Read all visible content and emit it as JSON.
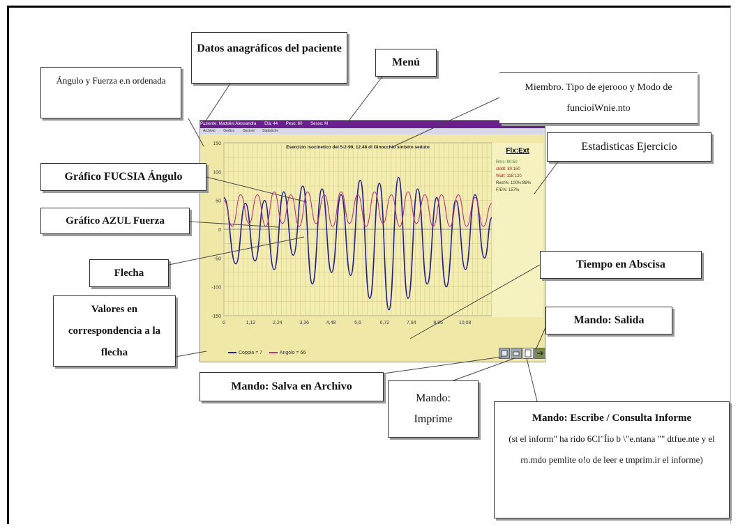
{
  "app": {
    "titlebar": {
      "patient_label": "Paziente: Mattolini Alessandra",
      "age": "Età: 44",
      "weight": "Peso: 60",
      "sex": "Sesso: M"
    },
    "menu_items": [
      "Archivio",
      "Grafico",
      "Opzioni",
      "Statistiche"
    ],
    "stats": {
      "header": "Flx:Ext",
      "rows": [
        {
          "label": "Rms:",
          "value": "90:50",
          "color": "#2e8b2e"
        },
        {
          "label": "stddt:",
          "value": "80:160",
          "color": "#b22222"
        },
        {
          "label": "Watt:",
          "value": "118:120",
          "color": "#b22222"
        },
        {
          "label": "Rest%:",
          "value": "100%:88%",
          "color": "#333333"
        },
        {
          "label": "F/E%:",
          "value": "157%",
          "color": "#333333"
        }
      ]
    },
    "legend": {
      "force": "Coppia = 7",
      "angle": "Angolo = 66",
      "force_color": "#1f1f9c",
      "angle_color": "#c0308a"
    },
    "buttons": [
      {
        "icon": "save-icon"
      },
      {
        "icon": "print-icon"
      },
      {
        "icon": "report-icon"
      },
      {
        "icon": "exit-icon"
      }
    ]
  },
  "chart_data": {
    "type": "line",
    "title": "Esercizio isocinetico del 5-2-99, 12.48 di Ginocchio sinistro seduto",
    "xlabel": "",
    "ylabel": "",
    "ylim": [
      -150,
      150
    ],
    "xlim": [
      0,
      11.2
    ],
    "y_ticks": [
      "150",
      "100",
      "50",
      "0",
      "-50",
      "-100",
      "-150"
    ],
    "x_ticks": [
      "0",
      "1,12",
      "2,24",
      "3,36",
      "4,48",
      "5,6",
      "6,72",
      "7,84",
      "8,96",
      "10,08"
    ],
    "grid": true,
    "series": [
      {
        "color": "#1f1f9c",
        "x": [
          0,
          0.5,
          0.9,
          1.3,
          1.7,
          2.1,
          2.5,
          2.9,
          3.3,
          3.7,
          4.1,
          4.5,
          4.9,
          5.3,
          5.7,
          6.1,
          6.5,
          6.9,
          7.3,
          7.7,
          8.1,
          8.5,
          8.9,
          9.3,
          9.7,
          10.1,
          10.5,
          10.9,
          11.2
        ],
        "y": [
          55,
          -60,
          45,
          -55,
          50,
          -70,
          65,
          -45,
          75,
          -95,
          70,
          -75,
          60,
          -80,
          85,
          -120,
          80,
          -140,
          90,
          -120,
          70,
          -95,
          55,
          -100,
          50,
          -70,
          60,
          -50,
          20
        ]
      },
      {
        "color": "#c0308a",
        "x": [
          0,
          0.35,
          0.7,
          1.05,
          1.4,
          1.75,
          2.1,
          2.45,
          2.8,
          3.15,
          3.5,
          3.85,
          4.2,
          4.55,
          4.9,
          5.25,
          5.6,
          5.95,
          6.3,
          6.65,
          7.0,
          7.35,
          7.7,
          8.05,
          8.4,
          8.75,
          9.1,
          9.45,
          9.8,
          10.15,
          10.5,
          10.85,
          11.2
        ],
        "y": [
          50,
          5,
          60,
          10,
          60,
          5,
          65,
          10,
          60,
          5,
          65,
          10,
          60,
          5,
          65,
          10,
          60,
          5,
          65,
          10,
          60,
          5,
          65,
          10,
          60,
          5,
          60,
          5,
          60,
          5,
          55,
          5,
          45
        ]
      }
    ]
  },
  "callouts": {
    "datos": "Datos anagráficos del paciente",
    "angulo_fuerza": "Ángulo y Fuerza e.n ordenada",
    "menu": "Menú",
    "miembro": "Miembro. Tipo de ejerooo y Modo de funcioiWnie.nto",
    "estadisticas": "Estadisticas Ejercicio",
    "fucsia": "Gráfico FUCSIA Ángulo",
    "azul": "Gráfico AZUL Fuerza",
    "flecha": "Flecha",
    "tiempo": "Tiempo en Abscisa",
    "valores": "Valores en correspondencia a la flecha",
    "salida": "Mando: Salida",
    "salva": "Mando: Salva en Archivo",
    "imprime": "Mando: Imprime",
    "escribe_title": "Mando: Escribe / Consulta Informe",
    "escribe_body": "(st el inform\" ha rido 6Cl\"Íio b \\\"e.ntana \"\" dtfue.nte y el rn.mdo pemlite o!o de leer e tmprim.ir el informe)"
  }
}
